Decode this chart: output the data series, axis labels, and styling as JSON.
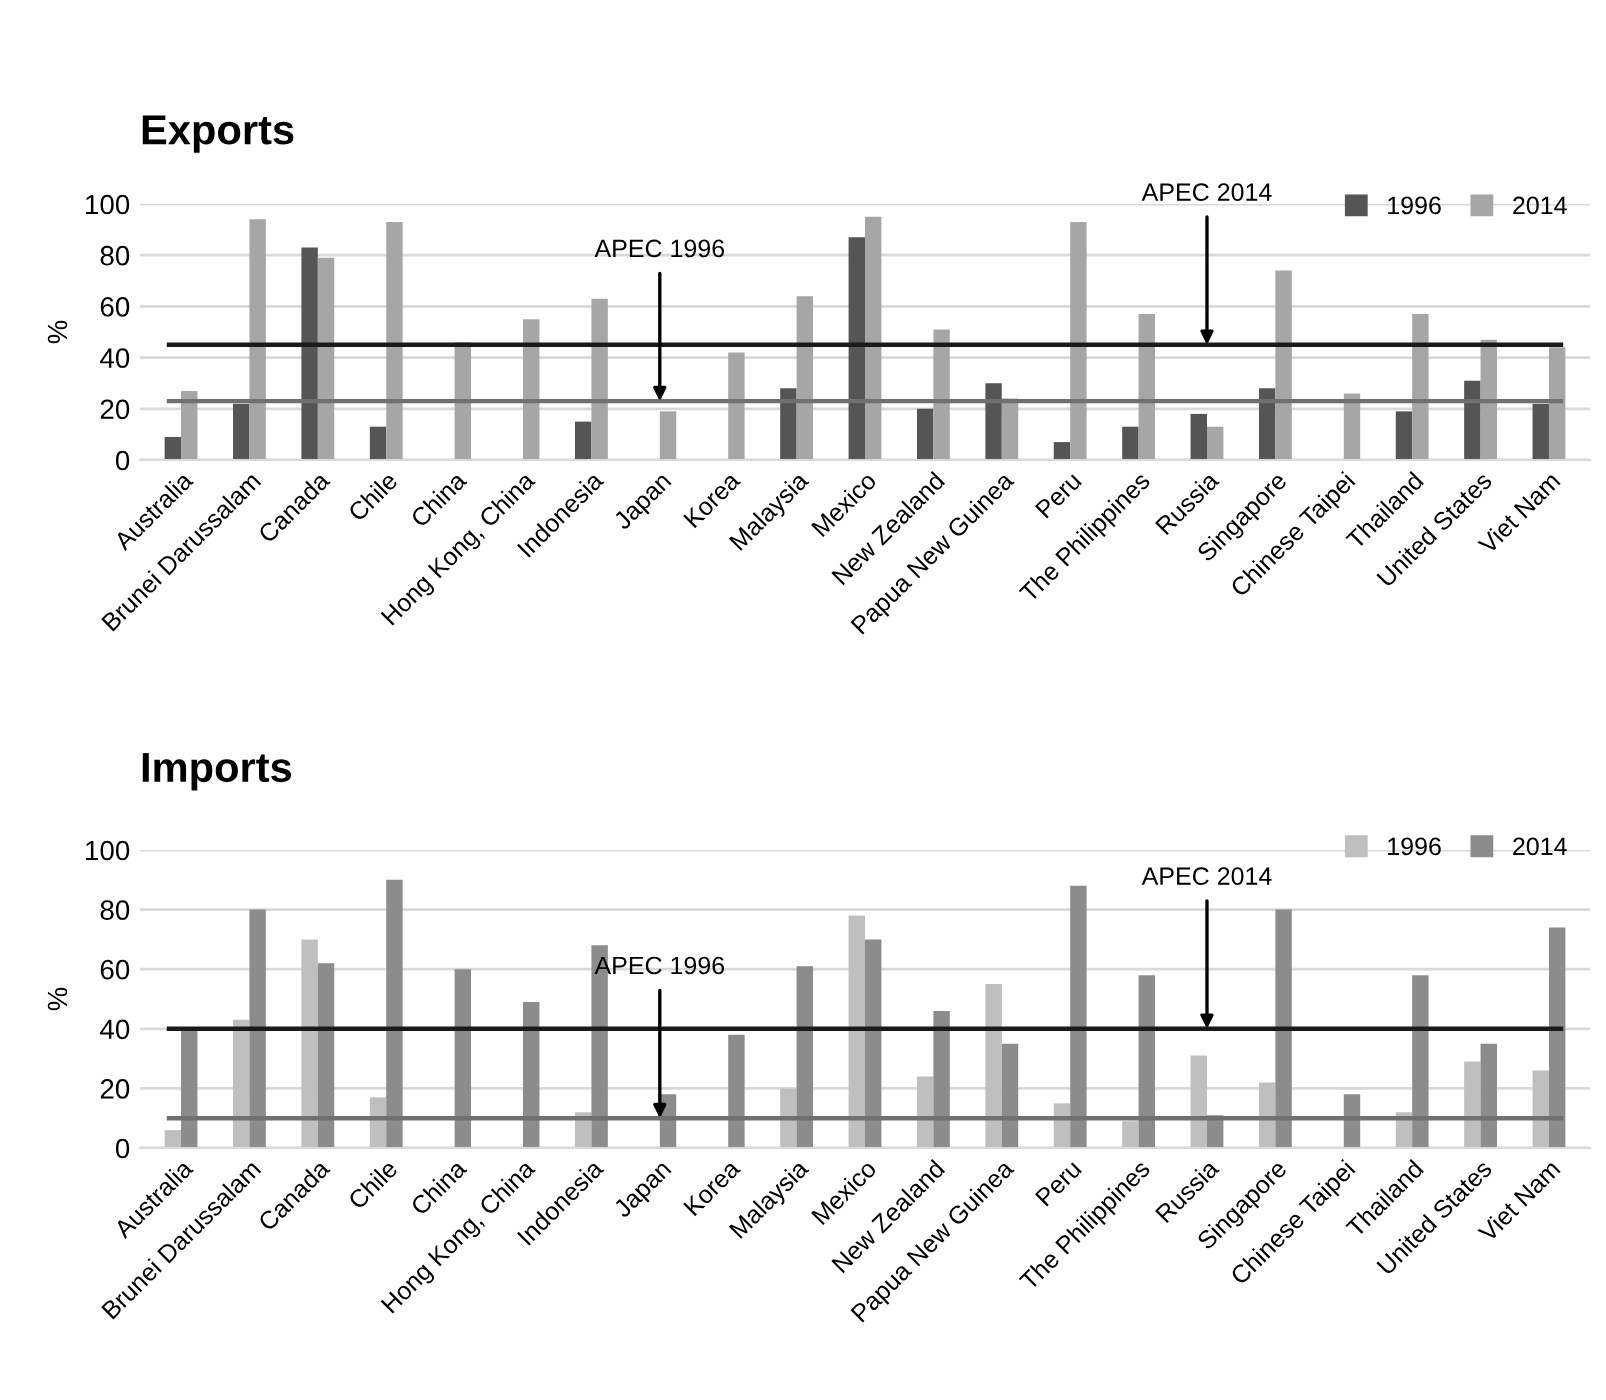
{
  "chart_data": [
    {
      "type": "bar",
      "title": "Exports",
      "ylabel": "%",
      "categories": [
        "Australia",
        "Brunei Darussalam",
        "Canada",
        "Chile",
        "China",
        "Hong Kong, China",
        "Indonesia",
        "Japan",
        "Korea",
        "Malaysia",
        "Mexico",
        "New Zealand",
        "Papua New Guinea",
        "Peru",
        "The Philippines",
        "Russia",
        "Singapore",
        "Chinese Taipei",
        "Thailand",
        "United States",
        "Viet Nam"
      ],
      "series": [
        {
          "name": "1996",
          "color": "#555555",
          "values": [
            9,
            22,
            83,
            13,
            null,
            null,
            15,
            null,
            null,
            28,
            87,
            20,
            30,
            7,
            13,
            18,
            28,
            null,
            19,
            31,
            22
          ]
        },
        {
          "name": "2014",
          "color": "#a6a6a6",
          "values": [
            27,
            94,
            79,
            93,
            46,
            55,
            63,
            19,
            42,
            64,
            95,
            51,
            24,
            93,
            57,
            13,
            74,
            26,
            57,
            47,
            44
          ]
        }
      ],
      "ylim": [
        0,
        100
      ],
      "yticks": [
        0,
        20,
        40,
        60,
        80,
        100
      ],
      "grid": "y",
      "legend": "top right",
      "ref_lines": [
        {
          "axis": "y",
          "value": 23,
          "color": "#707070"
        },
        {
          "axis": "y",
          "value": 45,
          "color": "#1a1a1a"
        }
      ],
      "annotations": [
        {
          "text": "APEC 1996",
          "x": "Japan",
          "y": 23
        },
        {
          "text": "APEC 2014",
          "x": "Russia",
          "y": 45
        }
      ]
    },
    {
      "type": "bar",
      "title": "Imports",
      "ylabel": "%",
      "categories": [
        "Australia",
        "Brunei Darussalam",
        "Canada",
        "Chile",
        "China",
        "Hong Kong, China",
        "Indonesia",
        "Japan",
        "Korea",
        "Malaysia",
        "Mexico",
        "New Zealand",
        "Papua New Guinea",
        "Peru",
        "The Philippines",
        "Russia",
        "Singapore",
        "Chinese Taipei",
        "Thailand",
        "United States",
        "Viet Nam"
      ],
      "series": [
        {
          "name": "1996",
          "color": "#bfbfbf",
          "values": [
            6,
            43,
            70,
            17,
            null,
            null,
            12,
            null,
            null,
            20,
            78,
            24,
            55,
            15,
            9,
            31,
            22,
            null,
            12,
            29,
            26
          ]
        },
        {
          "name": "2014",
          "color": "#8c8c8c",
          "values": [
            40,
            80,
            62,
            90,
            60,
            49,
            68,
            18,
            38,
            61,
            70,
            46,
            35,
            88,
            58,
            11,
            80,
            18,
            58,
            35,
            74
          ]
        }
      ],
      "ylim": [
        0,
        100
      ],
      "yticks": [
        0,
        20,
        40,
        60,
        80,
        100
      ],
      "grid": "y",
      "legend": "top right",
      "ref_lines": [
        {
          "axis": "y",
          "value": 10,
          "color": "#707070"
        },
        {
          "axis": "y",
          "value": 40,
          "color": "#1a1a1a"
        }
      ],
      "annotations": [
        {
          "text": "APEC 1996",
          "x": "Japan",
          "y": 10
        },
        {
          "text": "APEC 2014",
          "x": "Russia",
          "y": 40
        }
      ]
    }
  ]
}
